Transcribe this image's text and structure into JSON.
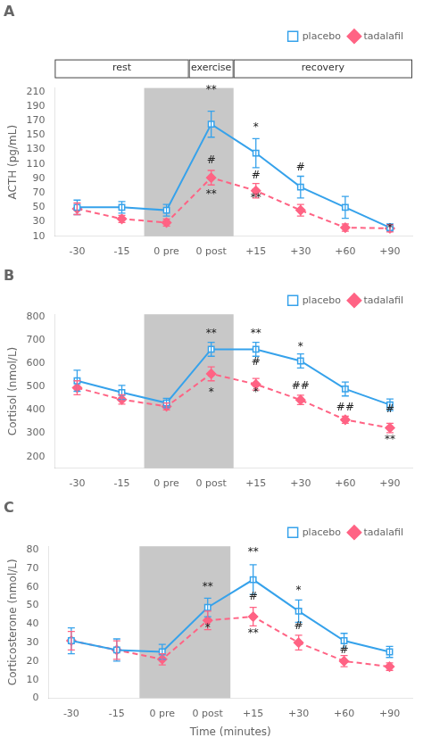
{
  "chart_data": [
    {
      "type": "line",
      "title": "A",
      "categories": [
        "-30",
        "-15",
        "0 pre",
        "0 post",
        "+15",
        "+30",
        "+60",
        "+90"
      ],
      "series": [
        {
          "name": "placebo",
          "values": [
            50,
            50,
            46,
            165,
            125,
            78,
            50,
            22
          ],
          "errors": [
            10,
            8,
            8,
            18,
            20,
            15,
            15,
            5
          ],
          "marker": "square",
          "line_style": "solid"
        },
        {
          "name": "tadalafil",
          "values": [
            48,
            34,
            29,
            91,
            73,
            46,
            22,
            21
          ],
          "errors": [
            8,
            5,
            5,
            10,
            10,
            8,
            5,
            5
          ],
          "marker": "diamond",
          "line_style": "dashed"
        }
      ],
      "ylabel": "ACTH (pg/mL)",
      "ylim": [
        10,
        215
      ],
      "yticks": [
        10,
        30,
        50,
        70,
        90,
        110,
        130,
        150,
        170,
        190,
        210
      ],
      "grid": false,
      "legend": "upper right",
      "shade": {
        "from": "0 pre",
        "to": "0 post",
        "color": "#c8c8c8"
      },
      "headers": [
        {
          "text": "rest",
          "from": "-30",
          "to": "0 pre"
        },
        {
          "text": "exercise",
          "from": "0 post",
          "to": "0 post"
        },
        {
          "text": "recovery",
          "from": "+15",
          "to": "+90"
        }
      ],
      "annotations": [
        {
          "x": "0 post",
          "y": 205,
          "text": "**"
        },
        {
          "x": "0 post",
          "y": 107,
          "text": "#"
        },
        {
          "x": "0 post",
          "y": 60,
          "text": "**"
        },
        {
          "x": "+15",
          "y": 153,
          "text": "*"
        },
        {
          "x": "+15",
          "y": 86,
          "text": "#"
        },
        {
          "x": "+15",
          "y": 56,
          "text": "**"
        },
        {
          "x": "+30",
          "y": 97,
          "text": "#"
        },
        {
          "x": "+90",
          "y": 13,
          "text": "*"
        }
      ]
    },
    {
      "type": "line",
      "title": "B",
      "categories": [
        "-30",
        "-15",
        "0 pre",
        "0 post",
        "+15",
        "+30",
        "+60",
        "+90"
      ],
      "series": [
        {
          "name": "placebo",
          "values": [
            525,
            475,
            430,
            660,
            660,
            610,
            490,
            422
          ],
          "errors": [
            45,
            30,
            20,
            30,
            30,
            30,
            30,
            25
          ],
          "marker": "square",
          "line_style": "solid"
        },
        {
          "name": "tadalafil",
          "values": [
            495,
            445,
            415,
            555,
            510,
            443,
            358,
            323
          ],
          "errors": [
            30,
            20,
            15,
            30,
            25,
            20,
            15,
            20
          ],
          "marker": "diamond",
          "line_style": "dashed"
        }
      ],
      "ylabel": "Cortisol (nmol/L)",
      "ylim": [
        150,
        810
      ],
      "yticks": [
        200,
        300,
        400,
        500,
        600,
        700,
        800
      ],
      "grid": false,
      "legend": "upper right",
      "shade": {
        "from": "0 pre",
        "to": "0 post",
        "color": "#c8c8c8"
      },
      "annotations": [
        {
          "x": "0 post",
          "y": 705,
          "text": "**"
        },
        {
          "x": "0 post",
          "y": 453,
          "text": "*"
        },
        {
          "x": "+15",
          "y": 705,
          "text": "**"
        },
        {
          "x": "+15",
          "y": 580,
          "text": "#"
        },
        {
          "x": "+15",
          "y": 453,
          "text": "*"
        },
        {
          "x": "+30",
          "y": 648,
          "text": "*"
        },
        {
          "x": "+30",
          "y": 480,
          "text": "##"
        },
        {
          "x": "+60",
          "y": 388,
          "text": "##"
        },
        {
          "x": "+90",
          "y": 380,
          "text": "#"
        },
        {
          "x": "+90",
          "y": 248,
          "text": "**"
        }
      ]
    },
    {
      "type": "line",
      "title": "C",
      "categories": [
        "-30",
        "-15",
        "0 pre",
        "0 post",
        "+15",
        "+30",
        "+60",
        "+90"
      ],
      "series": [
        {
          "name": "placebo",
          "values": [
            31,
            26,
            25,
            49,
            64,
            47,
            31,
            25
          ],
          "errors": [
            7,
            6,
            4,
            5,
            8,
            6,
            4,
            3
          ],
          "marker": "square",
          "line_style": "solid"
        },
        {
          "name": "tadalafil",
          "values": [
            31,
            26,
            21,
            42,
            44,
            30,
            20,
            17
          ],
          "errors": [
            5,
            5,
            3,
            5,
            5,
            4,
            3,
            2
          ],
          "marker": "diamond",
          "line_style": "dashed"
        }
      ],
      "ylabel": "Corticosterone (nmol/L)",
      "xlabel": "Time (minutes)",
      "ylim": [
        0,
        82
      ],
      "yticks": [
        0,
        10,
        20,
        30,
        40,
        50,
        60,
        70,
        80
      ],
      "grid": false,
      "legend": "upper right",
      "shade": {
        "from": "0 pre",
        "to": "0 post",
        "color": "#c8c8c8"
      },
      "annotations": [
        {
          "x": "0 post",
          "y": 57,
          "text": "**"
        },
        {
          "x": "0 post",
          "y": 35,
          "text": "*"
        },
        {
          "x": "+15",
          "y": 76,
          "text": "**"
        },
        {
          "x": "+15",
          "y": 52,
          "text": "#"
        },
        {
          "x": "+15",
          "y": 32,
          "text": "**"
        },
        {
          "x": "+30",
          "y": 55,
          "text": "*"
        },
        {
          "x": "+30",
          "y": 36,
          "text": "#"
        },
        {
          "x": "+60",
          "y": 23,
          "text": "#"
        }
      ]
    }
  ]
}
